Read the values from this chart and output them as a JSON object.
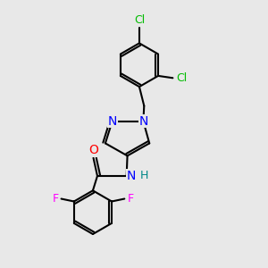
{
  "bg_color": "#e8e8e8",
  "bond_color": "black",
  "bond_width": 1.5,
  "atom_colors": {
    "Cl": "#00bb00",
    "N": "#0000ff",
    "O": "#ff0000",
    "F": "#ff00ff",
    "H": "#008888",
    "C": "black"
  },
  "font_size": 9,
  "fig_size": [
    3.0,
    3.0
  ],
  "dpi": 100,
  "xlim": [
    0,
    10
  ],
  "ylim": [
    0,
    10
  ]
}
